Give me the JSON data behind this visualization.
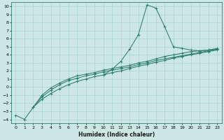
{
  "xlabel": "Humidex (Indice chaleur)",
  "bg_color": "#cde8e4",
  "grid_color": "#a8d5cf",
  "line_color": "#2e7d6e",
  "xlim": [
    -0.5,
    23.5
  ],
  "ylim": [
    -4.5,
    10.5
  ],
  "xticks": [
    0,
    1,
    2,
    3,
    4,
    5,
    6,
    7,
    8,
    9,
    10,
    11,
    12,
    13,
    14,
    15,
    16,
    17,
    18,
    19,
    20,
    21,
    22,
    23
  ],
  "yticks": [
    -4,
    -3,
    -2,
    -1,
    0,
    1,
    2,
    3,
    4,
    5,
    6,
    7,
    8,
    9,
    10
  ],
  "line_spike_x": [
    10,
    11,
    12,
    13,
    14,
    15,
    16,
    17,
    18,
    19,
    20,
    21,
    22,
    23
  ],
  "line_spike_y": [
    1.5,
    2.2,
    3.2,
    4.7,
    6.5,
    10.2,
    9.8,
    7.5,
    5.0,
    4.8,
    4.6,
    4.5,
    4.6,
    4.8
  ],
  "line_a_x": [
    0,
    1,
    2,
    3,
    4,
    5,
    6,
    7,
    8,
    9,
    10,
    11,
    12,
    13,
    14,
    15,
    16,
    17,
    18,
    19,
    20,
    21,
    22,
    23
  ],
  "line_a_y": [
    -3.5,
    -4.0,
    -2.5,
    -1.5,
    -0.8,
    -0.2,
    0.3,
    0.7,
    1.0,
    1.3,
    1.5,
    1.8,
    2.0,
    2.3,
    2.6,
    2.8,
    3.1,
    3.3,
    3.6,
    3.8,
    4.0,
    4.2,
    4.4,
    4.6
  ],
  "line_b_x": [
    2,
    3,
    4,
    5,
    6,
    7,
    8,
    9,
    10,
    11,
    12,
    13,
    14,
    15,
    16,
    17,
    18,
    19,
    20,
    21,
    22,
    23
  ],
  "line_b_y": [
    -2.5,
    -1.2,
    -0.4,
    0.3,
    0.8,
    1.1,
    1.4,
    1.6,
    1.9,
    2.1,
    2.3,
    2.5,
    2.8,
    3.0,
    3.3,
    3.5,
    3.7,
    3.9,
    4.1,
    4.3,
    4.5,
    4.7
  ],
  "line_c_x": [
    2,
    3,
    4,
    5,
    6,
    7,
    8,
    9,
    10,
    11,
    12,
    13,
    14,
    15,
    16,
    17,
    18,
    19,
    20,
    21,
    22,
    23
  ],
  "line_c_y": [
    -2.5,
    -1.0,
    -0.1,
    0.5,
    1.0,
    1.4,
    1.6,
    1.8,
    2.1,
    2.3,
    2.5,
    2.7,
    3.0,
    3.2,
    3.5,
    3.8,
    4.0,
    4.2,
    4.4,
    4.5,
    4.6,
    4.7
  ]
}
